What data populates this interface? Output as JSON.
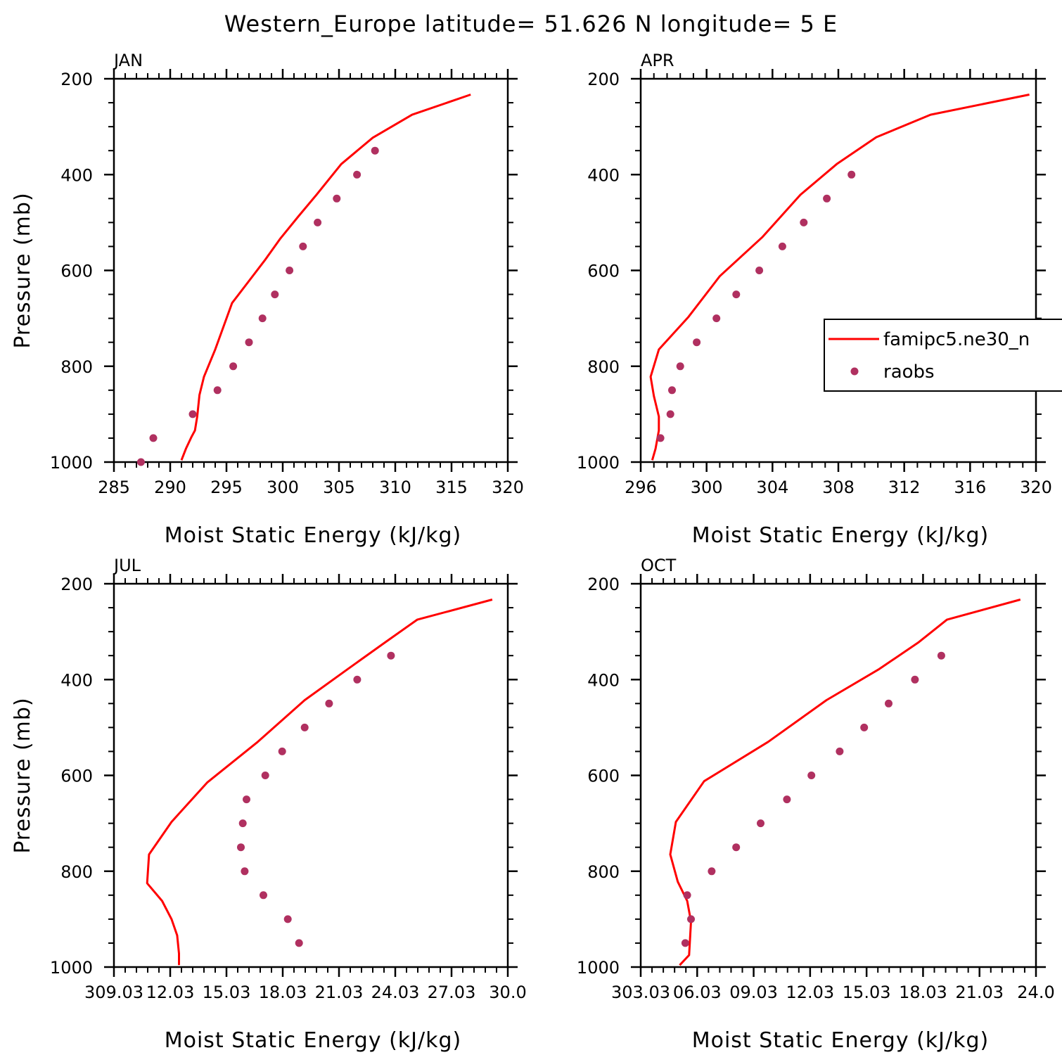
{
  "figure": {
    "title": "Western_Europe  latitude= 51.626 N longitude= 5 E"
  },
  "colors": {
    "model_line": "#ff0000",
    "obs_marker": "#b03060",
    "axes": "#000000"
  },
  "legend": {
    "entries": [
      {
        "label": "famipc5.ne30_n",
        "style": "line"
      },
      {
        "label": "raobs",
        "style": "marker"
      }
    ]
  },
  "chart_data": [
    {
      "type": "scatter",
      "panel": "JAN",
      "xlabel": "Moist Static Energy (kJ/kg)",
      "ylabel": "Pressure (mb)",
      "xlim": [
        285,
        320
      ],
      "ylim": [
        1000,
        200
      ],
      "y_inverted": true,
      "xticks": [
        285,
        290,
        295,
        300,
        305,
        310,
        315,
        320
      ],
      "xtick_labels": [
        "285",
        "290",
        "295",
        "300",
        "305",
        "310",
        "315",
        "320"
      ],
      "yticks": [
        200,
        400,
        600,
        800,
        1000
      ],
      "ytick_labels": [
        "200",
        "400",
        "600",
        "800",
        "1000"
      ],
      "series": [
        {
          "name": "famipc5.ne30_n",
          "style": "line",
          "x": [
            316.7,
            311.5,
            308.0,
            305.2,
            303.0,
            301.4,
            299.8,
            298.4,
            297.0,
            295.5,
            294.0,
            293.0,
            292.6,
            292.4,
            292.2,
            291.9,
            291.4,
            291.0
          ],
          "y": [
            233,
            275,
            323,
            378,
            442,
            487,
            533,
            579,
            622,
            668,
            765,
            822,
            860,
            905,
            934,
            947,
            972,
            996
          ]
        },
        {
          "name": "raobs",
          "style": "marker",
          "x": [
            308.2,
            306.6,
            304.8,
            303.1,
            301.8,
            300.6,
            299.3,
            298.2,
            297.0,
            295.6,
            294.2,
            292.0,
            288.5,
            287.4
          ],
          "y": [
            350,
            400,
            450,
            500,
            550,
            600,
            650,
            700,
            750,
            800,
            850,
            900,
            950,
            1000
          ]
        }
      ]
    },
    {
      "type": "scatter",
      "panel": "APR",
      "xlabel": "Moist Static Energy (kJ/kg)",
      "ylabel": "",
      "xlim": [
        296,
        320
      ],
      "ylim": [
        1000,
        200
      ],
      "y_inverted": true,
      "xticks": [
        296,
        300,
        304,
        308,
        312,
        316,
        320
      ],
      "xtick_labels": [
        "296",
        "300",
        "304",
        "308",
        "312",
        "316",
        "320"
      ],
      "yticks": [
        200,
        400,
        600,
        800,
        1000
      ],
      "ytick_labels": [
        "200",
        "400",
        "600",
        "800",
        "1000"
      ],
      "series": [
        {
          "name": "famipc5.ne30_n",
          "style": "line",
          "x": [
            319.6,
            313.6,
            310.3,
            307.9,
            305.7,
            303.4,
            300.8,
            298.9,
            297.1,
            296.6,
            296.8,
            297.1,
            297.1,
            296.9,
            296.7
          ],
          "y": [
            233,
            275,
            322,
            378,
            442,
            530,
            612,
            697,
            765,
            822,
            862,
            905,
            934,
            972,
            996
          ]
        },
        {
          "name": "raobs",
          "style": "marker",
          "x": [
            308.8,
            307.3,
            305.9,
            304.6,
            303.2,
            301.8,
            300.6,
            299.4,
            298.4,
            297.9,
            297.8,
            297.2
          ],
          "y": [
            400,
            450,
            500,
            550,
            600,
            650,
            700,
            750,
            800,
            850,
            900,
            950
          ]
        }
      ]
    },
    {
      "type": "scatter",
      "panel": "JUL",
      "xlabel": "Moist Static Energy (kJ/kg)",
      "ylabel": "Pressure (mb)",
      "xlim": [
        309.03,
        330.0
      ],
      "ylim": [
        1000,
        200
      ],
      "y_inverted": true,
      "xticks": [
        309.03,
        312.03,
        315.03,
        318.03,
        321.03,
        324.03,
        327.03,
        330.03
      ],
      "xtick_labels": [
        "309.03",
        "12.03",
        "15.03",
        "18.03",
        "21.03",
        "24.03",
        "27.03",
        "30.0"
      ],
      "yticks": [
        200,
        400,
        600,
        800,
        1000
      ],
      "ytick_labels": [
        "200",
        "400",
        "600",
        "800",
        "1000"
      ],
      "series": [
        {
          "name": "famipc5.ne30_n",
          "style": "line",
          "x": [
            329.2,
            325.2,
            323.5,
            321.5,
            319.2,
            316.7,
            314.0,
            312.1,
            310.9,
            310.8,
            311.6,
            312.1,
            312.4,
            312.5,
            312.5
          ],
          "y": [
            233,
            275,
            322,
            378,
            443,
            530,
            615,
            697,
            765,
            825,
            862,
            900,
            934,
            972,
            996
          ]
        },
        {
          "name": "raobs",
          "style": "marker",
          "x": [
            323.8,
            322.0,
            320.5,
            319.2,
            318.0,
            317.1,
            316.1,
            315.9,
            315.8,
            316.0,
            317.0,
            318.3,
            318.9
          ],
          "y": [
            350,
            400,
            450,
            500,
            550,
            600,
            650,
            700,
            750,
            800,
            850,
            900,
            950
          ]
        }
      ]
    },
    {
      "type": "scatter",
      "panel": "OCT",
      "xlabel": "Moist Static Energy (kJ/kg)",
      "ylabel": "",
      "xlim": [
        303.03,
        324.03
      ],
      "ylim": [
        1000,
        200
      ],
      "y_inverted": true,
      "xticks": [
        303.03,
        306.03,
        309.03,
        312.03,
        315.03,
        318.03,
        321.03,
        324.03
      ],
      "xtick_labels": [
        "303.03",
        "06.03",
        "09.03",
        "12.03",
        "15.03",
        "18.03",
        "21.03",
        "24.0"
      ],
      "yticks": [
        200,
        400,
        600,
        800,
        1000
      ],
      "ytick_labels": [
        "200",
        "400",
        "600",
        "800",
        "1000"
      ],
      "series": [
        {
          "name": "famipc5.ne30_n",
          "style": "line",
          "x": [
            323.2,
            319.3,
            317.8,
            315.7,
            312.9,
            309.8,
            306.4,
            304.9,
            304.6,
            305.0,
            305.5,
            305.7,
            305.6,
            305.1
          ],
          "y": [
            233,
            275,
            322,
            378,
            443,
            530,
            612,
            697,
            765,
            822,
            862,
            905,
            975,
            996
          ]
        },
        {
          "name": "raobs",
          "style": "marker",
          "x": [
            319.0,
            317.6,
            316.2,
            314.9,
            313.6,
            312.1,
            310.8,
            309.4,
            308.1,
            306.8,
            305.5,
            305.7,
            305.4
          ],
          "y": [
            350,
            400,
            450,
            500,
            550,
            600,
            650,
            700,
            750,
            800,
            850,
            900,
            950
          ]
        }
      ]
    }
  ]
}
